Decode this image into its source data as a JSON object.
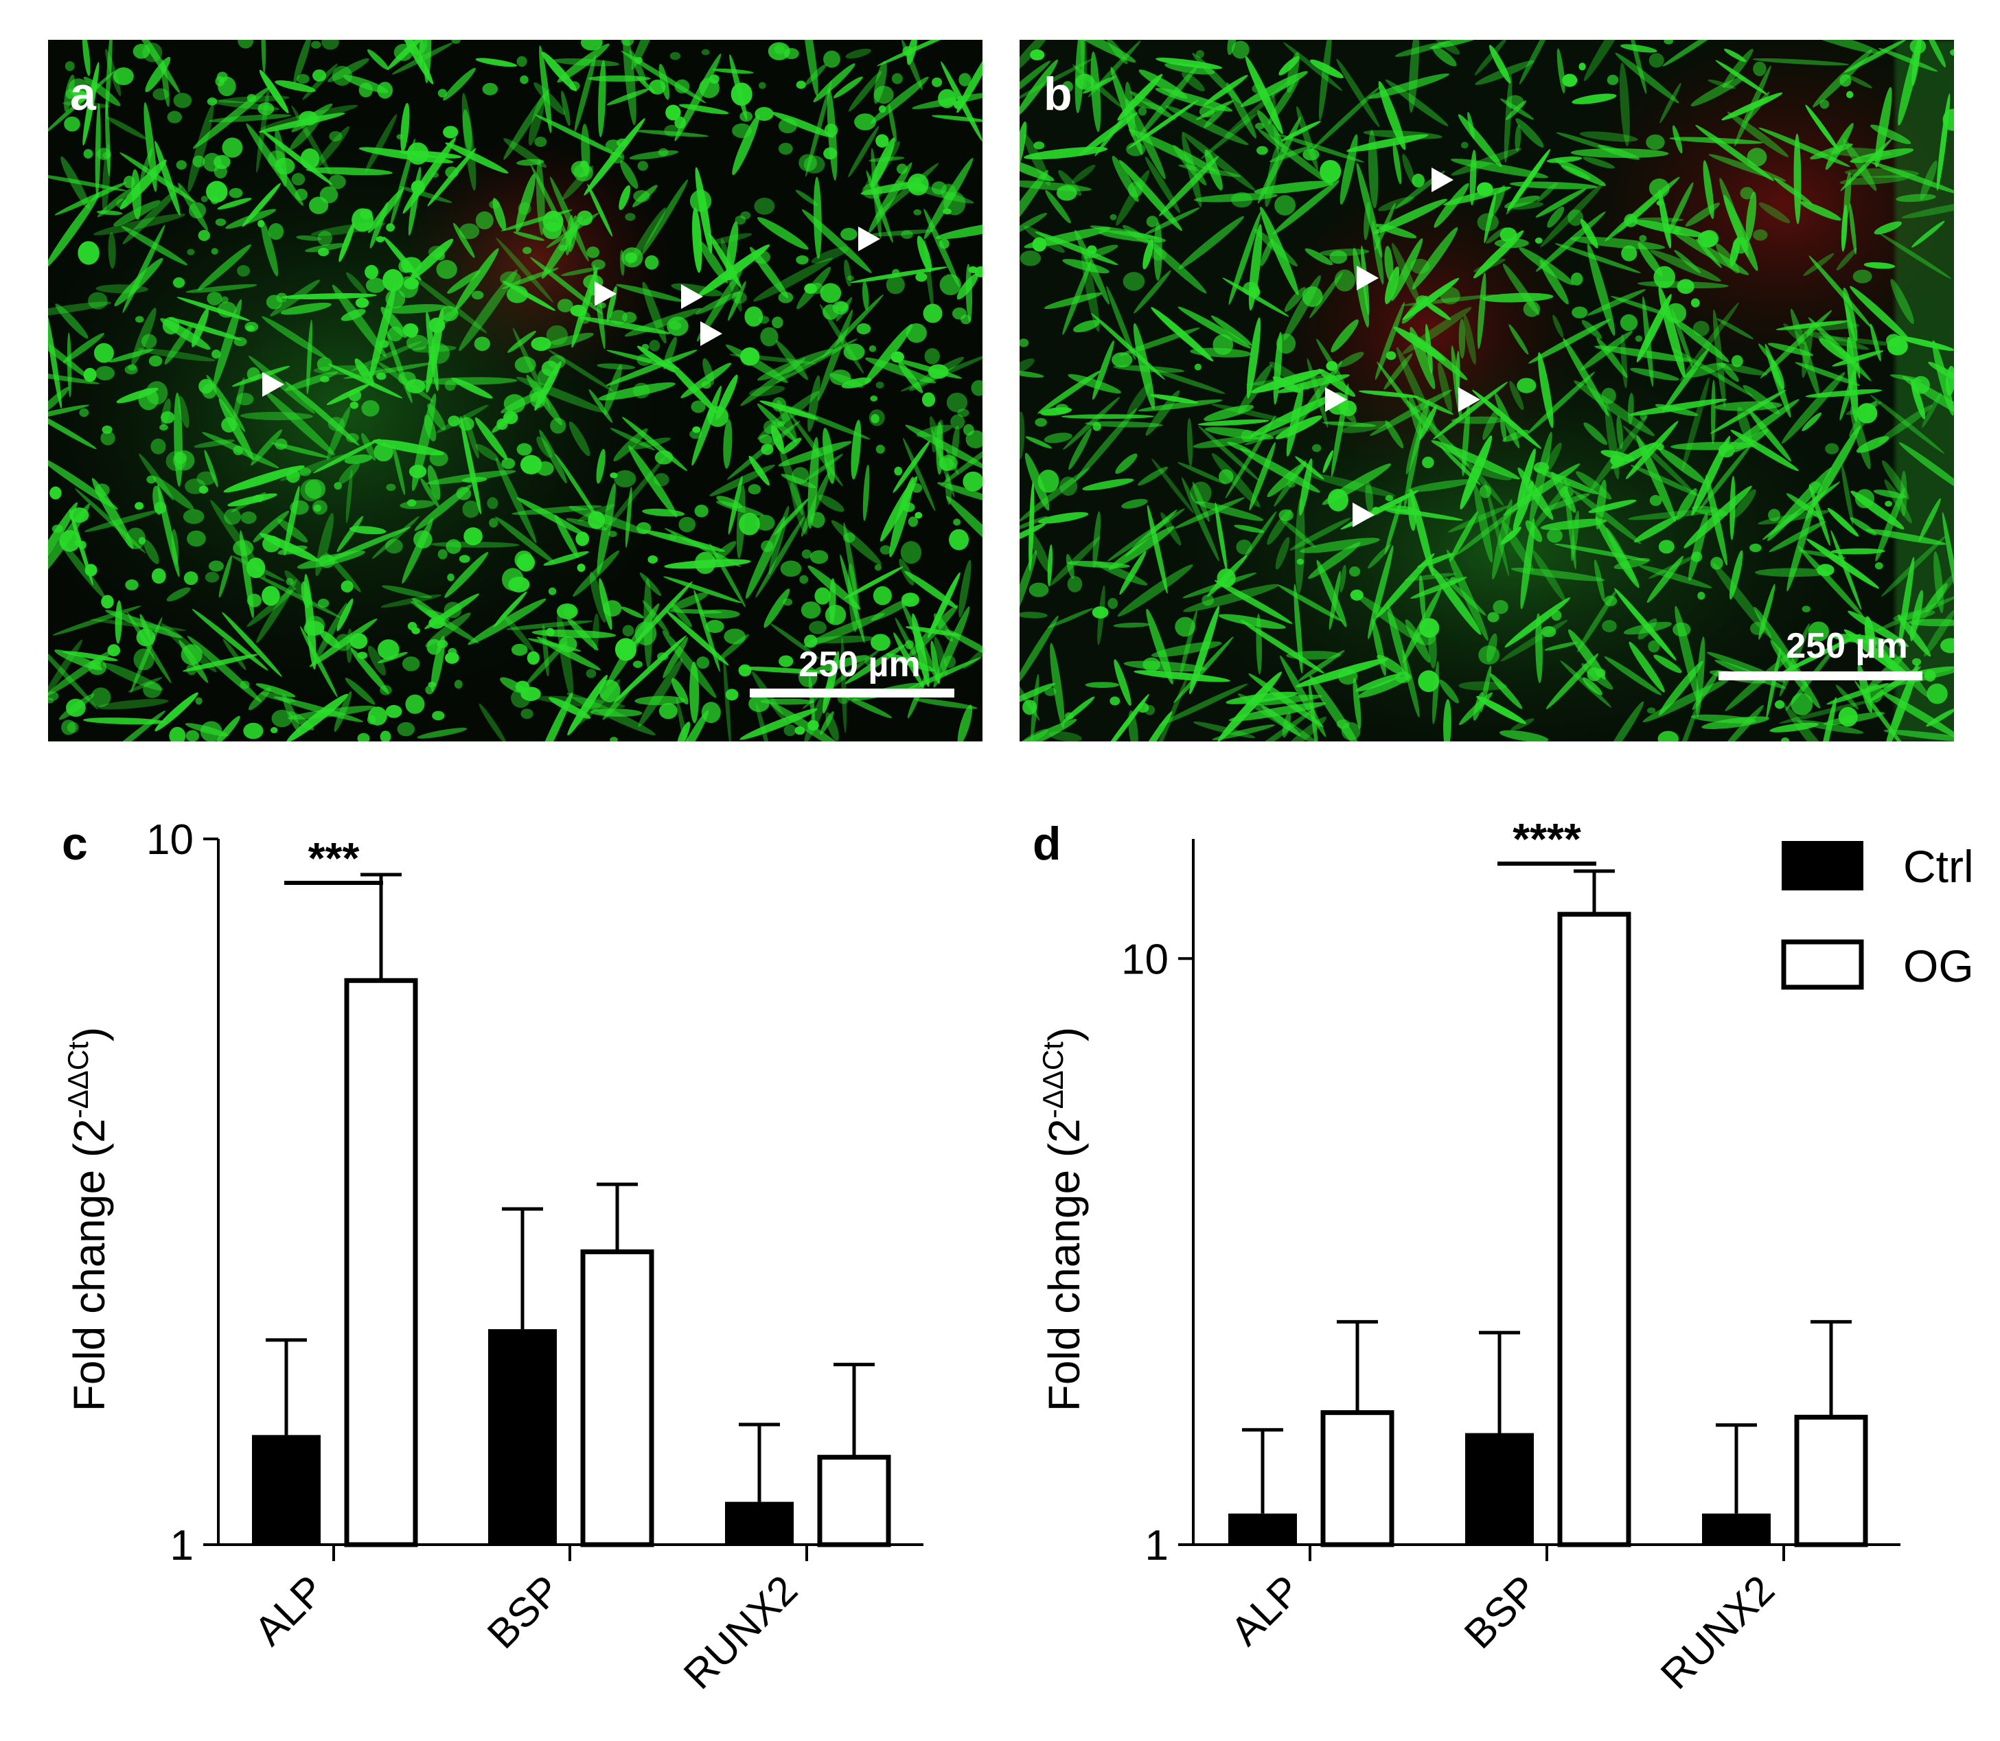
{
  "panels": {
    "a": {
      "label": "a",
      "scale_bar": "250 µm"
    },
    "b": {
      "label": "b",
      "scale_bar": "250 µm"
    }
  },
  "colors": {
    "ctrl_fill": "#000000",
    "og_fill": "#ffffff",
    "fluorescence_green": "#2bdc2b",
    "red_region": "#5a1010",
    "arrowheads": "#ffffff"
  },
  "legend": {
    "items": [
      "Ctrl",
      "OG"
    ],
    "placement": "top-right"
  },
  "chart_data": [
    {
      "panel": "c",
      "type": "bar",
      "yscale": "log",
      "ylim": [
        1,
        10
      ],
      "ylabel": "Fold change (2",
      "ylabel_sup": "-ΔΔCt",
      "ylabel_close": ")",
      "yticks": [
        "1",
        "10"
      ],
      "categories": [
        "ALP",
        "BSP",
        "RUNX2"
      ],
      "series": [
        {
          "name": "Ctrl",
          "values": [
            1.43,
            2.02,
            1.15
          ],
          "errors": [
            1.95,
            2.99,
            1.48
          ]
        },
        {
          "name": "OG",
          "values": [
            6.3,
            2.6,
            1.33
          ],
          "errors": [
            8.9,
            3.24,
            1.8
          ]
        }
      ],
      "significance": [
        {
          "category": "ALP",
          "label": "***"
        }
      ]
    },
    {
      "panel": "d",
      "type": "bar",
      "yscale": "log",
      "ylim": [
        1,
        16
      ],
      "ylabel": "Fold change (2",
      "ylabel_sup": "-ΔΔCt",
      "ylabel_close": ")",
      "yticks": [
        "1",
        "10"
      ],
      "categories": [
        "ALP",
        "BSP",
        "RUNX2"
      ],
      "series": [
        {
          "name": "Ctrl",
          "values": [
            1.13,
            1.55,
            1.13
          ],
          "errors": [
            1.57,
            2.3,
            1.6
          ]
        },
        {
          "name": "OG",
          "values": [
            1.68,
            11.9,
            1.65
          ],
          "errors": [
            2.4,
            14.1,
            2.4
          ]
        }
      ],
      "significance": [
        {
          "category": "BSP",
          "label": "****"
        }
      ]
    }
  ]
}
